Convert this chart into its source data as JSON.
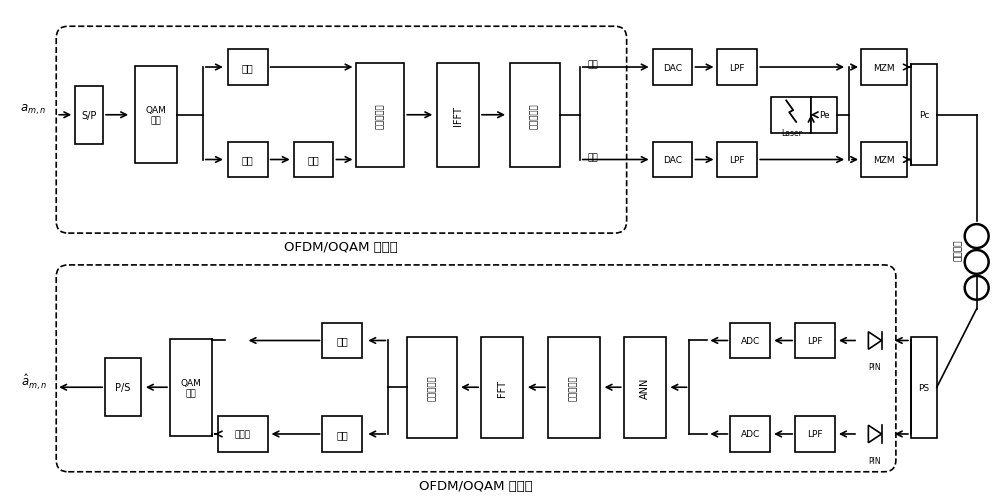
{
  "bg_color": "#ffffff",
  "fig_width": 10.0,
  "fig_height": 5.02,
  "tx_label": "OFDM/OQAM 发送端",
  "rx_label": "OFDM/OQAM 接收端",
  "fiber_label": "光纤信道"
}
